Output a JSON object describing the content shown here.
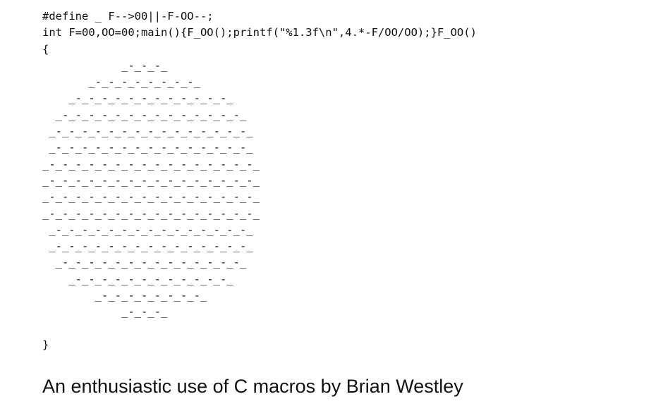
{
  "code": {
    "lines": [
      "#define _ F-->00||-F-OO--;",
      "int F=00,OO=00;main(){F_OO();printf(\"%1.3f\\n\",4.*-F/OO/OO);}F_OO()",
      "{",
      "            _-_-_-_",
      "       _-_-_-_-_-_-_-_-_",
      "    _-_-_-_-_-_-_-_-_-_-_-_-_",
      "  _-_-_-_-_-_-_-_-_-_-_-_-_-_-_",
      " _-_-_-_-_-_-_-_-_-_-_-_-_-_-_-_",
      " _-_-_-_-_-_-_-_-_-_-_-_-_-_-_-_",
      "_-_-_-_-_-_-_-_-_-_-_-_-_-_-_-_-_",
      "_-_-_-_-_-_-_-_-_-_-_-_-_-_-_-_-_",
      "_-_-_-_-_-_-_-_-_-_-_-_-_-_-_-_-_",
      "_-_-_-_-_-_-_-_-_-_-_-_-_-_-_-_-_",
      " _-_-_-_-_-_-_-_-_-_-_-_-_-_-_-_",
      " _-_-_-_-_-_-_-_-_-_-_-_-_-_-_-_",
      "  _-_-_-_-_-_-_-_-_-_-_-_-_-_-_",
      "    _-_-_-_-_-_-_-_-_-_-_-_-_",
      "        _-_-_-_-_-_-_-_-_",
      "            _-_-_-_",
      "",
      "}"
    ]
  },
  "caption": "An enthusiastic use of C macros by Brian Westley"
}
